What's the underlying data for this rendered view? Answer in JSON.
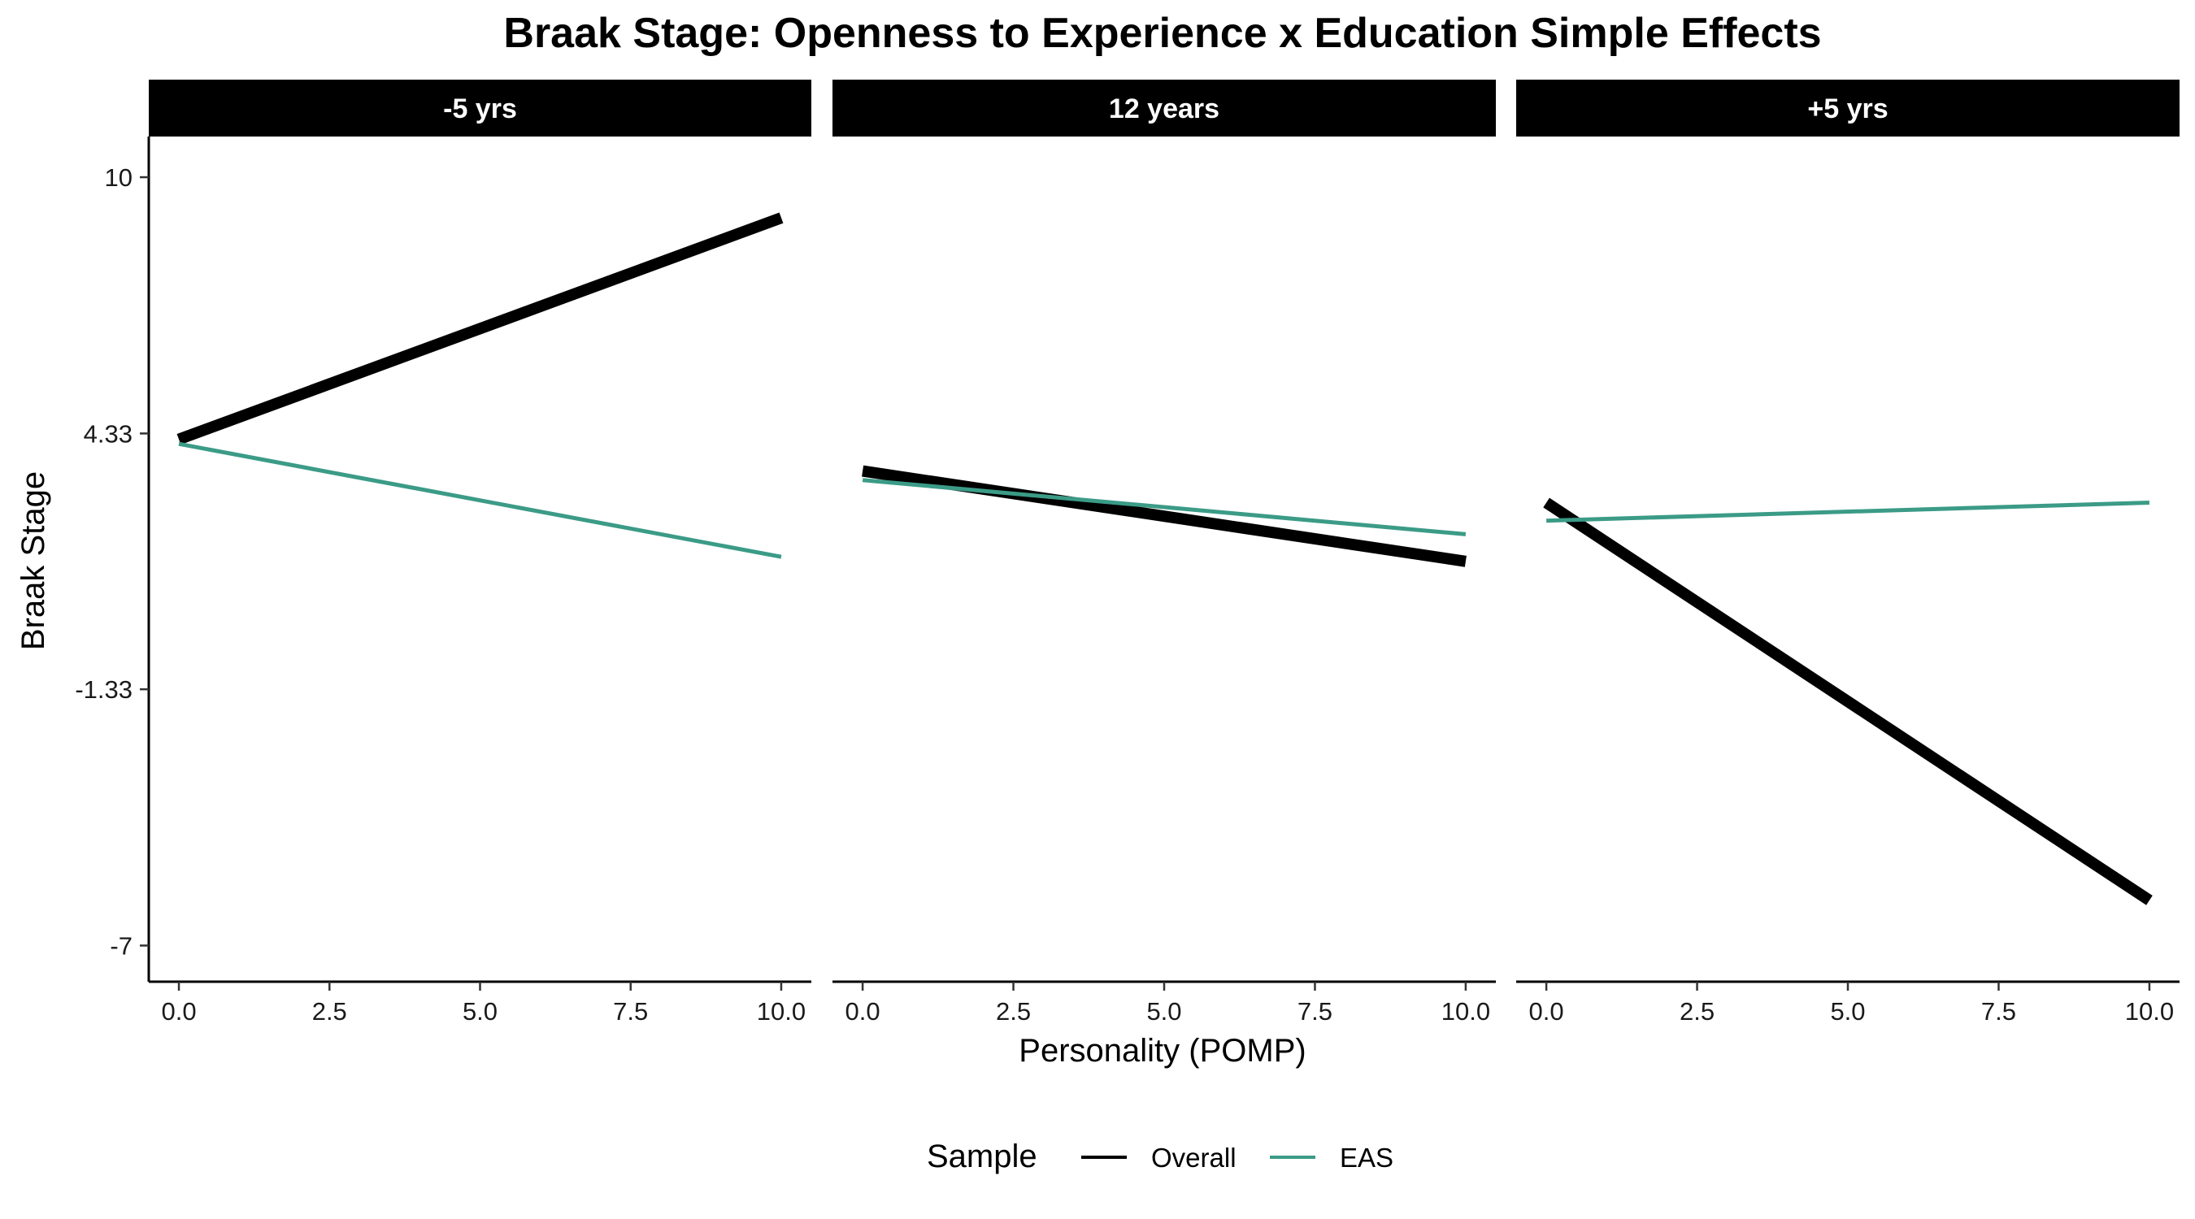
{
  "chart_data": {
    "type": "line",
    "title": "Braak Stage: Openness to Experience x Education Simple Effects",
    "xlabel": "Personality (POMP)",
    "ylabel": "Braak Stage",
    "xlim": [
      -0.5,
      10.5
    ],
    "ylim": [
      -7.8,
      10.9
    ],
    "x_ticks": [
      0,
      2.5,
      5,
      7.5,
      10
    ],
    "x_tick_labels": [
      "0.0",
      "2.5",
      "5.0",
      "7.5",
      "10.0"
    ],
    "y_ticks": [
      10,
      4.33,
      -1.33,
      -7
    ],
    "y_tick_labels": [
      "10",
      "4.33",
      "-1.33",
      "-7"
    ],
    "legend": {
      "title": "Sample",
      "position": "bottom"
    },
    "series_styles": [
      {
        "name": "Overall",
        "color": "#000000"
      },
      {
        "name": "EAS",
        "color": "#3b9b87"
      }
    ],
    "panels": [
      {
        "label": "-5 yrs",
        "series": [
          {
            "name": "Overall",
            "x": [
              0,
              10
            ],
            "y": [
              4.2,
              9.1
            ]
          },
          {
            "name": "EAS",
            "x": [
              0,
              10
            ],
            "y": [
              4.1,
              1.6
            ]
          }
        ]
      },
      {
        "label": "12 years",
        "series": [
          {
            "name": "Overall",
            "x": [
              0,
              10
            ],
            "y": [
              3.5,
              1.5
            ]
          },
          {
            "name": "EAS",
            "x": [
              0,
              10
            ],
            "y": [
              3.3,
              2.1
            ]
          }
        ]
      },
      {
        "label": "+5 yrs",
        "series": [
          {
            "name": "Overall",
            "x": [
              0,
              10
            ],
            "y": [
              2.8,
              -6.0
            ]
          },
          {
            "name": "EAS",
            "x": [
              0,
              10
            ],
            "y": [
              2.4,
              2.8
            ]
          }
        ]
      }
    ]
  }
}
